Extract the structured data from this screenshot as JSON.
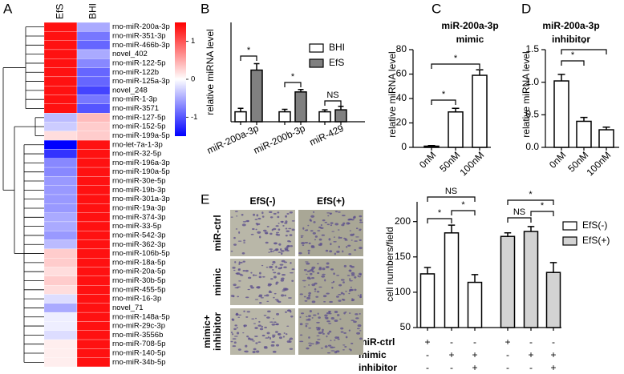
{
  "chart_data": [
    {
      "type": "heatmap",
      "panel": "A",
      "columns": [
        "EfS",
        "BHI"
      ],
      "rows": [
        "rno-miR-200a-3p",
        "rno-miR-351-3p",
        "rno-miR-466b-3p",
        "novel_402",
        "rno-miR-122-5p",
        "rno-miR-122b",
        "rno-miR-125a-3p",
        "novel_248",
        "rno-miR-1-3p",
        "rno-miR-3571",
        "rno-miR-127-5p",
        "rno-miR-152-5p",
        "rno-miR-199a-5p",
        "rno-let-7a-1-3p",
        "rno-miR-32-5p",
        "rno-miR-196a-3p",
        "rno-miR-190a-5p",
        "rno-miR-30e-5p",
        "rno-miR-19b-3p",
        "rno-miR-301a-3p",
        "rno-miR-19a-3p",
        "rno-miR-374-3p",
        "rno-miR-33-5p",
        "rno-miR-542-3p",
        "rno-miR-362-3p",
        "rno-miR-106b-5p",
        "rno-miR-18a-5p",
        "rno-miR-20a-5p",
        "rno-miR-30b-5p",
        "rno-miR-455-5p",
        "rno-miR-16-3p",
        "novel_71",
        "rno-miR-148a-5p",
        "rno-miR-29c-3p",
        "rno-miR-3556b",
        "rno-miR-708-5p",
        "rno-miR-140-5p",
        "rno-miR-34b-5p"
      ],
      "values": [
        [
          1.4,
          -0.5
        ],
        [
          1.4,
          -0.8
        ],
        [
          1.4,
          -0.9
        ],
        [
          1.4,
          -0.5
        ],
        [
          1.4,
          -0.7
        ],
        [
          1.4,
          -0.9
        ],
        [
          1.4,
          -0.9
        ],
        [
          1.4,
          -1.1
        ],
        [
          1.4,
          -0.8
        ],
        [
          1.4,
          -1.0
        ],
        [
          -0.4,
          0.4
        ],
        [
          -0.3,
          0.3
        ],
        [
          0.2,
          0.3
        ],
        [
          -1.5,
          1.4
        ],
        [
          -1.2,
          1.4
        ],
        [
          -0.7,
          1.4
        ],
        [
          -0.7,
          1.4
        ],
        [
          -0.6,
          1.4
        ],
        [
          -0.6,
          1.4
        ],
        [
          -0.6,
          1.4
        ],
        [
          -0.6,
          1.4
        ],
        [
          -0.5,
          1.4
        ],
        [
          -0.5,
          1.4
        ],
        [
          -0.6,
          1.4
        ],
        [
          -0.4,
          1.4
        ],
        [
          0.3,
          1.4
        ],
        [
          0.3,
          1.4
        ],
        [
          0.2,
          1.4
        ],
        [
          0.3,
          1.4
        ],
        [
          0.2,
          1.4
        ],
        [
          -0.2,
          1.4
        ],
        [
          -0.5,
          1.4
        ],
        [
          -0.1,
          1.4
        ],
        [
          -0.1,
          1.4
        ],
        [
          -0.2,
          1.4
        ],
        [
          0.1,
          1.4
        ],
        [
          0.1,
          1.4
        ],
        [
          0.1,
          1.4
        ]
      ],
      "clim": [
        -1.5,
        1.5
      ],
      "colorbar_ticks": [
        1,
        0,
        -1
      ],
      "low_color": "#0000ff",
      "mid_color": "#ffffff",
      "high_color": "#ff0000"
    },
    {
      "type": "bar",
      "panel": "B",
      "ylabel": "relative miRNA level",
      "categories": [
        "miR-200a-3p",
        "miR-200b-3p",
        "miR-429"
      ],
      "series": [
        {
          "name": "BHI",
          "color": "#ffffff",
          "values": [
            1,
            1,
            1
          ],
          "errors": [
            0.35,
            0.25,
            0.2
          ]
        },
        {
          "name": "EfS",
          "color": "#808080",
          "values": [
            5.2,
            3.0,
            1.2
          ],
          "errors": [
            0.65,
            0.25,
            0.35
          ]
        }
      ],
      "ylim": [
        0,
        10
      ],
      "legend": "upper right",
      "annotations": [
        "*",
        "*",
        "NS"
      ]
    },
    {
      "type": "bar",
      "panel": "C",
      "title": [
        "miR-200a-3p",
        "mimic"
      ],
      "ylabel": "relative miRNA level",
      "categories": [
        "0nM",
        "50nM",
        "100nM"
      ],
      "values": [
        1,
        29,
        59
      ],
      "errors": [
        0.5,
        3,
        4.5
      ],
      "color": "#ffffff",
      "ylim": [
        0,
        80
      ],
      "yticks": [
        0,
        20,
        40,
        60,
        80
      ],
      "annotations": [
        "*",
        "*"
      ]
    },
    {
      "type": "bar",
      "panel": "D",
      "title": [
        "miR-200a-3p",
        "inhibitor"
      ],
      "ylabel": "relative miRNA level",
      "categories": [
        "0nM",
        "50nM",
        "100nM"
      ],
      "values": [
        1.02,
        0.4,
        0.27
      ],
      "errors": [
        0.1,
        0.06,
        0.04
      ],
      "color": "#ffffff",
      "ylim": [
        0,
        1.5
      ],
      "yticks": [
        {
          "value": 0,
          "label": "0.0"
        },
        0.5,
        {
          "value": 1,
          "label": "1.0"
        },
        1.5
      ],
      "annotations": [
        "*",
        "*"
      ]
    },
    {
      "type": "bar",
      "panel": "E",
      "ylabel": "cell numbers/field",
      "series": [
        {
          "name": "EfS(-)",
          "color": "#ffffff",
          "values": [
            126,
            184,
            114
          ],
          "errors": [
            9,
            11,
            11
          ]
        },
        {
          "name": "EfS(+)",
          "color": "#d3d3d3",
          "values": [
            179,
            186,
            128
          ],
          "errors": [
            5,
            7,
            14
          ]
        }
      ],
      "ylim": [
        50,
        228
      ],
      "yticks": [
        50,
        100,
        150,
        200
      ],
      "legend": "upper right",
      "annotations": [
        "NS",
        "*",
        "*",
        "*",
        "NS",
        "*"
      ],
      "treatment_rows": [
        {
          "name": "miR-ctrl",
          "signs": [
            "+",
            "-",
            "-",
            "+",
            "-",
            "-"
          ]
        },
        {
          "name": "mimic",
          "signs": [
            "-",
            "+",
            "+",
            "-",
            "+",
            "+"
          ]
        },
        {
          "name": "inhibitor",
          "signs": [
            "-",
            "-",
            "+",
            "-",
            "-",
            "+"
          ]
        }
      ]
    }
  ],
  "image_grid": {
    "columns": [
      "EfS(-)",
      "EfS(+)"
    ],
    "rows": [
      [
        "miR-ctrl"
      ],
      [
        "mimic"
      ],
      [
        "mimic+",
        "inhibitor"
      ]
    ]
  }
}
